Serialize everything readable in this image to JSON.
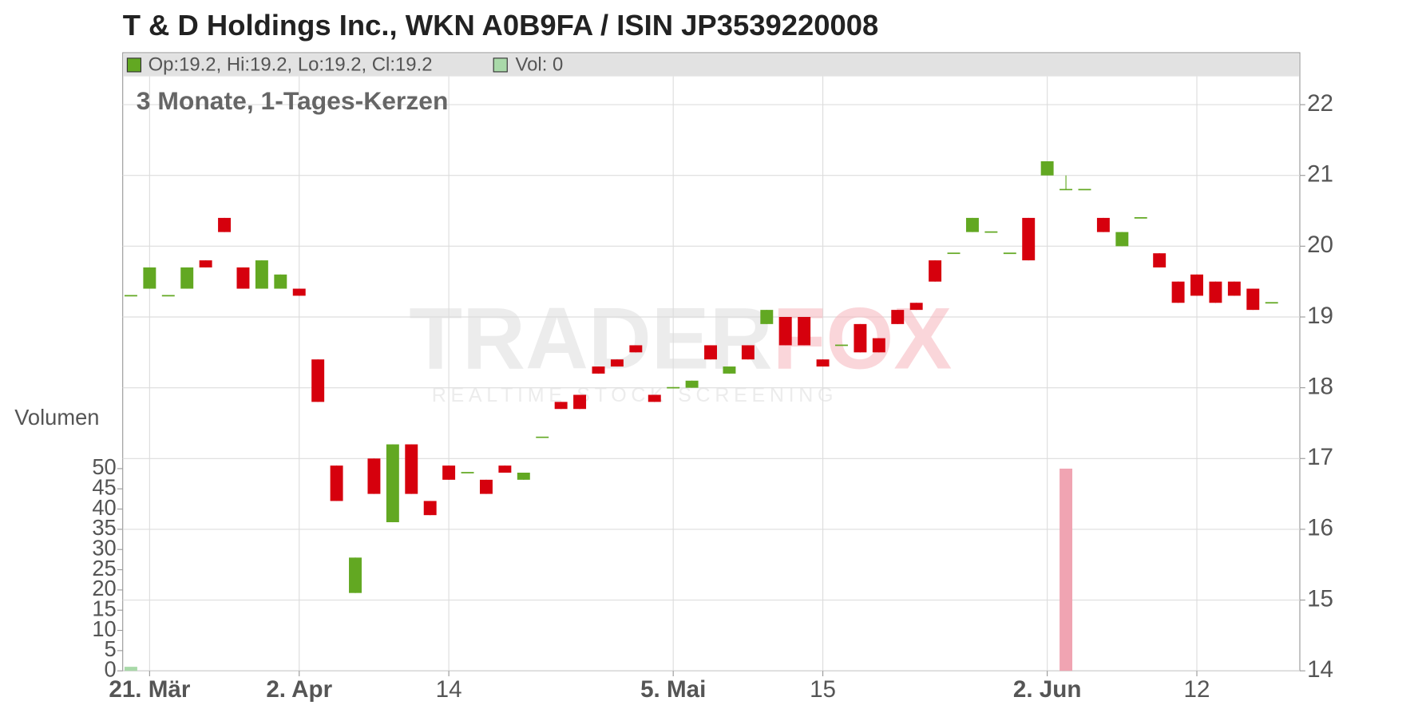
{
  "chart_data": {
    "type": "candlestick",
    "title": "T & D Holdings Inc., WKN A0B9FA / ISIN JP3539220008",
    "subtitle": "3 Monate, 1-Tages-Kerzen",
    "legend": {
      "ohlc": "Op:19.2, Hi:19.2, Lo:19.2, Cl:19.2",
      "volume": "Vol: 0"
    },
    "volume_label": "Volumen",
    "watermark": [
      "TRADER",
      "FOX"
    ],
    "watermark_tagline": "REALTIME STOCK SCREENING",
    "categories": [
      null,
      "21. Mär",
      null,
      null,
      null,
      null,
      null,
      null,
      null,
      "2. Apr",
      null,
      null,
      null,
      null,
      null,
      null,
      null,
      "14",
      null,
      null,
      null,
      null,
      null,
      null,
      null,
      null,
      null,
      null,
      null,
      "5. Mai",
      null,
      null,
      null,
      null,
      null,
      null,
      null,
      "15",
      null,
      null,
      null,
      null,
      null,
      null,
      null,
      null,
      null,
      null,
      null,
      "2. Jun",
      null,
      null,
      null,
      null,
      null,
      null,
      null,
      "12",
      null,
      null,
      null,
      null
    ],
    "open": [
      19.3,
      19.4,
      19.3,
      19.4,
      19.8,
      20.4,
      19.7,
      19.4,
      19.4,
      19.4,
      18.4,
      16.9,
      15.1,
      17.0,
      16.1,
      17.2,
      16.4,
      16.9,
      16.8,
      16.7,
      16.9,
      16.7,
      17.3,
      17.8,
      17.9,
      18.3,
      18.4,
      18.6,
      17.9,
      18.0,
      18.0,
      18.6,
      18.2,
      18.6,
      18.9,
      19.0,
      19.0,
      18.4,
      18.6,
      18.9,
      18.7,
      19.1,
      19.2,
      19.8,
      19.9,
      20.2,
      20.2,
      19.9,
      20.4,
      21.0,
      20.8,
      20.8,
      20.4,
      20.0,
      20.4,
      19.9,
      19.5,
      19.6,
      19.5,
      19.5,
      19.4,
      19.2
    ],
    "high": [
      19.3,
      19.7,
      19.3,
      19.7,
      19.8,
      20.4,
      19.7,
      19.8,
      19.6,
      19.4,
      18.4,
      16.9,
      15.6,
      17.0,
      17.2,
      17.2,
      16.4,
      16.9,
      16.8,
      16.7,
      16.9,
      16.8,
      17.3,
      17.8,
      17.9,
      18.3,
      18.4,
      18.6,
      17.9,
      18.0,
      18.1,
      18.6,
      18.3,
      18.6,
      19.1,
      19.0,
      19.0,
      18.4,
      18.6,
      18.9,
      18.7,
      19.1,
      19.2,
      19.8,
      19.9,
      20.4,
      20.2,
      19.9,
      20.4,
      21.2,
      21.0,
      20.8,
      20.4,
      20.2,
      20.4,
      19.9,
      19.5,
      19.6,
      19.5,
      19.5,
      19.4,
      19.2
    ],
    "low": [
      19.3,
      19.4,
      19.3,
      19.4,
      19.7,
      20.2,
      19.4,
      19.4,
      19.4,
      19.3,
      17.8,
      16.4,
      15.1,
      16.5,
      16.1,
      16.5,
      16.2,
      16.7,
      16.8,
      16.5,
      16.8,
      16.7,
      17.3,
      17.7,
      17.7,
      18.2,
      18.3,
      18.5,
      17.8,
      18.0,
      18.0,
      18.4,
      18.2,
      18.4,
      18.9,
      18.6,
      18.6,
      18.3,
      18.6,
      18.5,
      18.5,
      18.9,
      19.1,
      19.5,
      19.9,
      20.2,
      20.2,
      19.9,
      19.8,
      21.0,
      20.8,
      20.8,
      20.2,
      20.0,
      20.4,
      19.7,
      19.2,
      19.3,
      19.2,
      19.3,
      19.1,
      19.2
    ],
    "close": [
      19.3,
      19.7,
      19.3,
      19.7,
      19.7,
      20.2,
      19.4,
      19.8,
      19.6,
      19.3,
      17.8,
      16.4,
      15.6,
      16.5,
      17.2,
      16.5,
      16.2,
      16.7,
      16.8,
      16.5,
      16.8,
      16.8,
      17.3,
      17.7,
      17.7,
      18.2,
      18.3,
      18.5,
      17.8,
      18.0,
      18.1,
      18.4,
      18.3,
      18.4,
      19.1,
      18.6,
      18.6,
      18.3,
      18.6,
      18.5,
      18.5,
      18.9,
      19.1,
      19.5,
      19.9,
      20.4,
      20.2,
      19.9,
      19.8,
      21.2,
      20.8,
      20.8,
      20.2,
      20.2,
      20.4,
      19.7,
      19.2,
      19.3,
      19.2,
      19.3,
      19.1,
      19.2
    ],
    "volume": [
      1,
      0,
      0,
      0,
      0,
      0,
      0,
      0,
      0,
      0,
      0,
      0,
      0,
      0,
      0,
      0,
      0,
      0,
      0,
      0,
      0,
      0,
      0,
      0,
      0,
      0,
      0,
      0,
      0,
      0,
      0,
      0,
      0,
      0,
      0,
      0,
      0,
      0,
      0,
      0,
      0,
      0,
      0,
      0,
      0,
      0,
      0,
      0,
      0,
      0,
      50,
      0,
      0,
      0,
      0,
      0,
      0,
      0,
      0,
      0,
      0,
      0
    ],
    "up_color": "#62a822",
    "down_color": "#d6000d",
    "volume_up_color": "#a9d9a9",
    "volume_down_color": "#f0a4b2",
    "ylim": [
      14,
      22.4
    ],
    "yticks": [
      14,
      15,
      16,
      17,
      18,
      19,
      20,
      21,
      22
    ],
    "y2lim": [
      0,
      147
    ],
    "y2ticks": [
      0,
      5,
      10,
      15,
      20,
      25,
      30,
      35,
      40,
      45,
      50
    ],
    "grid": true
  }
}
